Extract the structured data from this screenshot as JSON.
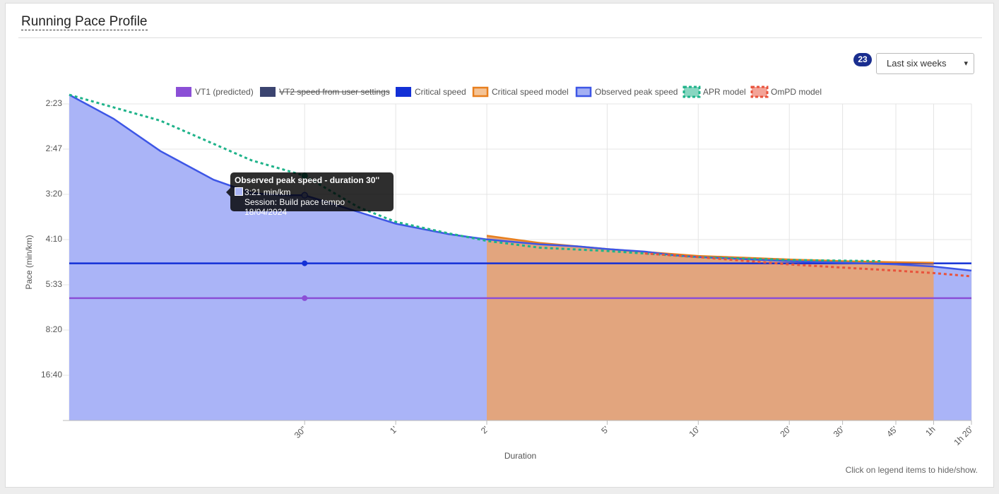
{
  "card": {
    "title": "Running Pace Profile",
    "badge_count": "23",
    "period_select": {
      "selected": "Last six weeks"
    },
    "footnote": "Click on legend items to hide/show."
  },
  "chart_data": {
    "type": "area",
    "xlabel": "Duration",
    "ylabel": "Pace (min/km)",
    "x_scale": "log",
    "x_unit": "seconds",
    "x_range": [
      5,
      4800
    ],
    "y_scale": "reciprocal",
    "y_ticks": [
      "2:23",
      "2:47",
      "3:20",
      "4:10",
      "5:33",
      "8:20",
      "16:40"
    ],
    "x_ticks": [
      {
        "label": "30''",
        "x": 30
      },
      {
        "label": "1'",
        "x": 60
      },
      {
        "label": "2'",
        "x": 120
      },
      {
        "label": "5'",
        "x": 300
      },
      {
        "label": "10'",
        "x": 600
      },
      {
        "label": "20'",
        "x": 1200
      },
      {
        "label": "30'",
        "x": 1800
      },
      {
        "label": "45'",
        "x": 2700
      },
      {
        "label": "1h",
        "x": 3600
      },
      {
        "label": "1h 20'",
        "x": 4800
      }
    ],
    "grid": true,
    "legend_position": "top",
    "legend": [
      {
        "name": "VT1 (predicted)",
        "color": "#8b4fd6",
        "style": "box",
        "hidden": false
      },
      {
        "name": "VT2 speed from user settings",
        "color": "#3b4470",
        "style": "box",
        "hidden": true
      },
      {
        "name": "Critical speed",
        "color": "#1330d6",
        "style": "box",
        "hidden": false
      },
      {
        "name": "Critical speed model",
        "color": "#e87f1e",
        "style": "box-light",
        "hidden": false
      },
      {
        "name": "Observed peak speed",
        "color": "#3d56e6",
        "style": "box-light",
        "hidden": false
      },
      {
        "name": "APR model",
        "color": "#1fb38a",
        "style": "dashed",
        "hidden": false
      },
      {
        "name": "OmPD model",
        "color": "#e8533c",
        "style": "dashed",
        "hidden": false
      }
    ],
    "series": [
      {
        "name": "Observed peak speed",
        "color": "#3d56e6",
        "fill": "#aab4f7",
        "x_values": [
          5,
          7,
          10,
          15,
          20,
          25,
          30,
          40,
          60,
          90,
          120,
          180,
          240,
          300,
          400,
          500,
          600,
          900,
          1200,
          1800,
          2700,
          3600,
          4800
        ],
        "pace_sec": [
          139,
          150,
          168,
          188,
          199,
          201,
          201,
          212,
          230,
          243,
          250,
          257,
          260,
          264,
          268,
          274,
          277,
          281,
          284,
          287,
          290,
          294,
          302
        ]
      },
      {
        "name": "Critical speed model",
        "color": "#e87f1e",
        "fill": "#e2a57e",
        "x_values": [
          120,
          180,
          300,
          600,
          1200,
          1800,
          2700,
          3600
        ],
        "pace_sec": [
          245,
          255,
          264,
          275,
          281,
          284,
          286,
          287
        ]
      },
      {
        "name": "APR model",
        "color": "#1fb38a",
        "dashed": true,
        "x_values": [
          5,
          10,
          20,
          30,
          45,
          60,
          90,
          120,
          180,
          300,
          600,
          1200,
          2400
        ],
        "pace_sec": [
          139,
          151,
          174,
          185,
          212,
          228,
          242,
          252,
          262,
          267,
          277,
          282,
          284
        ]
      },
      {
        "name": "OmPD model",
        "color": "#e8533c",
        "dashed": true,
        "x_values": [
          400,
          600,
          1200,
          1800,
          2700,
          3600,
          4800
        ],
        "pace_sec": [
          271,
          277,
          290,
          296,
          302,
          307,
          314
        ]
      }
    ],
    "hlines": [
      {
        "name": "Critical speed",
        "color": "#1330d6",
        "pace_sec": 288
      },
      {
        "name": "VT1 (predicted)",
        "color": "#8b4fd6",
        "pace_sec": 370
      }
    ],
    "tooltip": {
      "title": "Observed peak speed - duration 30''",
      "value": "3:21 min/km",
      "session": "Session: Build pace tempo 18/04/2024",
      "x": 30
    }
  }
}
